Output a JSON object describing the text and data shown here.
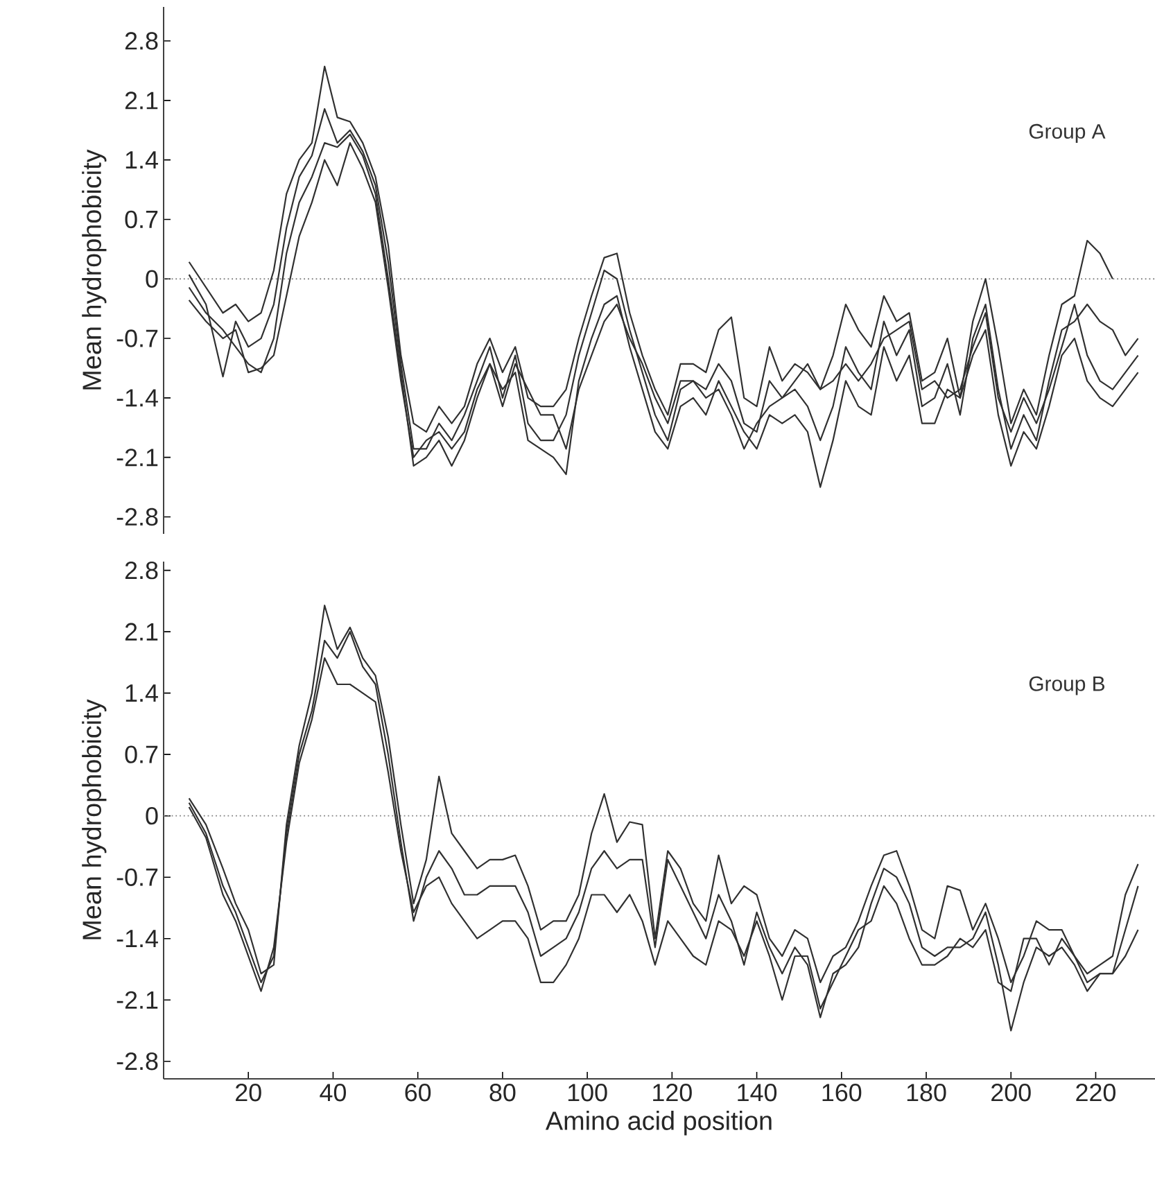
{
  "chart_data": [
    {
      "type": "line",
      "ylabel": "Mean hydrophobicity",
      "annotations": [
        "Group A"
      ],
      "x": [
        6,
        10,
        14,
        17,
        20,
        23,
        26,
        29,
        32,
        35,
        38,
        41,
        44,
        47,
        50,
        53,
        56,
        59,
        62,
        65,
        68,
        71,
        74,
        77,
        80,
        83,
        86,
        89,
        92,
        95,
        98,
        101,
        104,
        107,
        110,
        113,
        116,
        119,
        122,
        125,
        128,
        131,
        134,
        137,
        140,
        143,
        146,
        149,
        152,
        155,
        158,
        161,
        164,
        167,
        170,
        173,
        176,
        179,
        182,
        185,
        188,
        191,
        194,
        197,
        200,
        203,
        206,
        209,
        212,
        215,
        218,
        221,
        224,
        227,
        230
      ],
      "series": [
        {
          "color": "#303030",
          "values": [
            0.2,
            -0.1,
            -0.4,
            -0.3,
            -0.5,
            -0.4,
            0.1,
            1.0,
            1.4,
            1.6,
            2.5,
            1.9,
            1.85,
            1.6,
            1.2,
            0.4,
            -0.9,
            -1.7,
            -1.8,
            -1.5,
            -1.7,
            -1.5,
            -1.0,
            -0.7,
            -1.1,
            -0.8,
            -1.4,
            -1.5,
            -1.5,
            -1.3,
            -0.7,
            -0.2,
            0.25,
            0.3,
            -0.4,
            -0.9,
            -1.3,
            -1.6,
            -1.0,
            -1.0,
            -1.1,
            -0.6,
            -0.45,
            -1.4,
            -1.5,
            -0.8,
            -1.2,
            -1.0,
            -1.1,
            -1.3,
            -0.9,
            -0.3,
            -0.6,
            -0.8,
            -0.2,
            -0.5,
            -0.4,
            -1.2,
            -1.1,
            -0.7,
            -1.4,
            -0.5,
            0.0,
            -0.8,
            -1.7,
            -1.3,
            -1.6,
            -0.9,
            -0.3,
            -0.2,
            0.45,
            0.3,
            0.0,
            null,
            null
          ]
        },
        {
          "color": "#303030",
          "values": [
            0.05,
            -0.3,
            -1.15,
            -0.5,
            -0.8,
            -0.7,
            -0.3,
            0.6,
            1.2,
            1.45,
            2.0,
            1.6,
            1.75,
            1.5,
            1.1,
            0.2,
            -1.0,
            -2.0,
            -2.0,
            -1.7,
            -1.9,
            -1.6,
            -1.2,
            -0.8,
            -1.4,
            -0.9,
            -1.7,
            -1.9,
            -1.9,
            -1.6,
            -0.9,
            -0.4,
            0.1,
            0.0,
            -0.6,
            -1.1,
            -1.6,
            -1.9,
            -1.3,
            -1.2,
            -1.3,
            -1.0,
            -1.2,
            -1.7,
            -1.8,
            -1.2,
            -1.4,
            -1.3,
            -1.5,
            -1.9,
            -1.5,
            -0.8,
            -1.1,
            -1.3,
            -0.5,
            -0.9,
            -0.6,
            -1.5,
            -1.4,
            -1.0,
            -1.6,
            -0.7,
            -0.3,
            -1.3,
            -2.0,
            -1.6,
            -1.9,
            -1.2,
            -0.6,
            -0.5,
            -0.3,
            -0.5,
            -0.6,
            -0.9,
            -0.7
          ]
        },
        {
          "color": "#303030",
          "values": [
            -0.1,
            -0.4,
            -0.6,
            -0.8,
            -1.0,
            -1.1,
            -0.7,
            0.3,
            0.9,
            1.2,
            1.6,
            1.55,
            1.7,
            1.45,
            1.0,
            0.0,
            -1.1,
            -2.2,
            -2.1,
            -1.9,
            -2.2,
            -1.9,
            -1.4,
            -1.0,
            -1.3,
            -1.1,
            -1.9,
            -2.0,
            -2.1,
            -2.3,
            -1.2,
            -0.7,
            -0.3,
            -0.2,
            -0.8,
            -1.3,
            -1.8,
            -2.0,
            -1.5,
            -1.4,
            -1.6,
            -1.2,
            -1.5,
            -1.8,
            -2.0,
            -1.6,
            -1.7,
            -1.6,
            -1.8,
            -2.45,
            -1.9,
            -1.2,
            -1.5,
            -1.6,
            -0.8,
            -1.2,
            -0.9,
            -1.7,
            -1.7,
            -1.3,
            -1.4,
            -0.9,
            -0.6,
            -1.6,
            -2.2,
            -1.8,
            -2.0,
            -1.5,
            -0.9,
            -0.7,
            -1.2,
            -1.4,
            -1.5,
            -1.3,
            -1.1
          ]
        },
        {
          "color": "#303030",
          "values": [
            -0.25,
            -0.5,
            -0.7,
            -0.6,
            -1.1,
            -1.05,
            -0.9,
            -0.2,
            0.5,
            0.9,
            1.4,
            1.1,
            1.6,
            1.3,
            0.9,
            -0.1,
            -1.2,
            -2.1,
            -1.9,
            -1.8,
            -2.0,
            -1.8,
            -1.3,
            -1.0,
            -1.5,
            -1.0,
            -1.3,
            -1.6,
            -1.6,
            -2.0,
            -1.3,
            -0.9,
            -0.5,
            -0.3,
            -0.7,
            -1.0,
            -1.4,
            -1.7,
            -1.2,
            -1.2,
            -1.4,
            -1.3,
            -1.6,
            -2.0,
            -1.7,
            -1.5,
            -1.4,
            -1.2,
            -1.0,
            -1.3,
            -1.2,
            -1.0,
            -1.2,
            -1.0,
            -0.7,
            -0.6,
            -0.5,
            -1.3,
            -1.2,
            -1.4,
            -1.3,
            -0.8,
            -0.4,
            -1.4,
            -1.8,
            -1.4,
            -1.7,
            -1.3,
            -0.8,
            -0.3,
            -0.9,
            -1.2,
            -1.3,
            -1.1,
            -0.9
          ]
        }
      ],
      "xlim": [
        0,
        234
      ],
      "ylim": [
        -3.0,
        3.2
      ],
      "yticks": [
        -2.8,
        -2.1,
        -1.4,
        -0.7,
        0,
        0.7,
        1.4,
        2.1,
        2.8
      ],
      "tick_labels": "y",
      "marker": "none",
      "line_style": "solid",
      "ref_lines": [
        {
          "axis": "y",
          "value": 0,
          "color": "#808080",
          "line_style": "dotted"
        }
      ]
    },
    {
      "type": "line",
      "xlabel": "Amino acid position",
      "ylabel": "Mean hydrophobicity",
      "annotations": [
        "Group B"
      ],
      "x": [
        6,
        10,
        14,
        17,
        20,
        23,
        26,
        29,
        32,
        35,
        38,
        41,
        44,
        47,
        50,
        53,
        56,
        59,
        62,
        65,
        68,
        71,
        74,
        77,
        80,
        83,
        86,
        89,
        92,
        95,
        98,
        101,
        104,
        107,
        110,
        113,
        116,
        119,
        122,
        125,
        128,
        131,
        134,
        137,
        140,
        143,
        146,
        149,
        152,
        155,
        158,
        161,
        164,
        167,
        170,
        173,
        176,
        179,
        182,
        185,
        188,
        191,
        194,
        197,
        200,
        203,
        206,
        209,
        212,
        215,
        218,
        221,
        224,
        227,
        230
      ],
      "series": [
        {
          "color": "#303030",
          "values": [
            0.2,
            -0.1,
            -0.6,
            -1.0,
            -1.3,
            -1.8,
            -1.7,
            -0.1,
            0.8,
            1.4,
            2.4,
            1.9,
            2.15,
            1.8,
            1.6,
            0.9,
            -0.1,
            -1.0,
            -0.5,
            0.45,
            -0.2,
            -0.4,
            -0.6,
            -0.5,
            -0.5,
            -0.45,
            -0.8,
            -1.3,
            -1.2,
            -1.2,
            -0.9,
            -0.2,
            0.25,
            -0.3,
            -0.07,
            -0.1,
            -1.4,
            -0.4,
            -0.6,
            -1.0,
            -1.2,
            -0.45,
            -1.0,
            -0.8,
            -0.9,
            -1.4,
            -1.6,
            -1.3,
            -1.4,
            -1.9,
            -1.6,
            -1.5,
            -1.2,
            -0.8,
            -0.45,
            -0.4,
            -0.8,
            -1.3,
            -1.4,
            -0.8,
            -0.85,
            -1.3,
            -1.0,
            -1.4,
            -1.9,
            -1.6,
            -1.2,
            -1.3,
            -1.3,
            -1.6,
            -1.8,
            -1.7,
            -1.6,
            -0.9,
            -0.55
          ]
        },
        {
          "color": "#303030",
          "values": [
            0.15,
            -0.2,
            -0.8,
            -1.1,
            -1.5,
            -1.9,
            -1.6,
            -0.2,
            0.7,
            1.2,
            2.0,
            1.8,
            2.1,
            1.7,
            1.5,
            0.7,
            -0.3,
            -1.2,
            -0.7,
            -0.4,
            -0.6,
            -0.9,
            -0.9,
            -0.8,
            -0.8,
            -0.8,
            -1.1,
            -1.6,
            -1.5,
            -1.4,
            -1.1,
            -0.6,
            -0.4,
            -0.6,
            -0.5,
            -0.5,
            -1.5,
            -0.5,
            -0.8,
            -1.1,
            -1.4,
            -0.9,
            -1.2,
            -1.7,
            -1.1,
            -1.5,
            -1.8,
            -1.5,
            -1.7,
            -2.3,
            -1.8,
            -1.7,
            -1.5,
            -1.0,
            -0.6,
            -0.7,
            -1.0,
            -1.5,
            -1.6,
            -1.5,
            -1.5,
            -1.4,
            -1.1,
            -1.7,
            -2.45,
            -1.9,
            -1.5,
            -1.6,
            -1.5,
            -1.7,
            -2.0,
            -1.8,
            -1.8,
            -1.3,
            -0.8
          ]
        },
        {
          "color": "#303030",
          "values": [
            0.1,
            -0.25,
            -0.9,
            -1.2,
            -1.6,
            -2.0,
            -1.5,
            -0.3,
            0.6,
            1.1,
            1.8,
            1.5,
            1.5,
            1.4,
            1.3,
            0.5,
            -0.4,
            -1.1,
            -0.8,
            -0.7,
            -1.0,
            -1.2,
            -1.4,
            -1.3,
            -1.2,
            -1.2,
            -1.4,
            -1.9,
            -1.9,
            -1.7,
            -1.4,
            -0.9,
            -0.9,
            -1.1,
            -0.9,
            -1.2,
            -1.7,
            -1.2,
            -1.4,
            -1.6,
            -1.7,
            -1.2,
            -1.3,
            -1.6,
            -1.2,
            -1.6,
            -2.1,
            -1.6,
            -1.6,
            -2.2,
            -1.9,
            -1.6,
            -1.3,
            -1.2,
            -0.8,
            -1.0,
            -1.4,
            -1.7,
            -1.7,
            -1.6,
            -1.4,
            -1.5,
            -1.3,
            -1.9,
            -2.0,
            -1.4,
            -1.4,
            -1.7,
            -1.4,
            -1.6,
            -1.9,
            -1.8,
            -1.8,
            -1.6,
            -1.3
          ]
        }
      ],
      "xlim": [
        0,
        234
      ],
      "ylim": [
        -3.0,
        2.9
      ],
      "xticks": [
        20,
        40,
        60,
        80,
        100,
        120,
        140,
        160,
        180,
        200,
        220
      ],
      "yticks": [
        -2.8,
        -2.1,
        -1.4,
        -0.7,
        0,
        0.7,
        1.4,
        2.1,
        2.8
      ],
      "marker": "none",
      "line_style": "solid",
      "ref_lines": [
        {
          "axis": "y",
          "value": 0,
          "color": "#808080",
          "line_style": "dotted"
        }
      ]
    }
  ]
}
